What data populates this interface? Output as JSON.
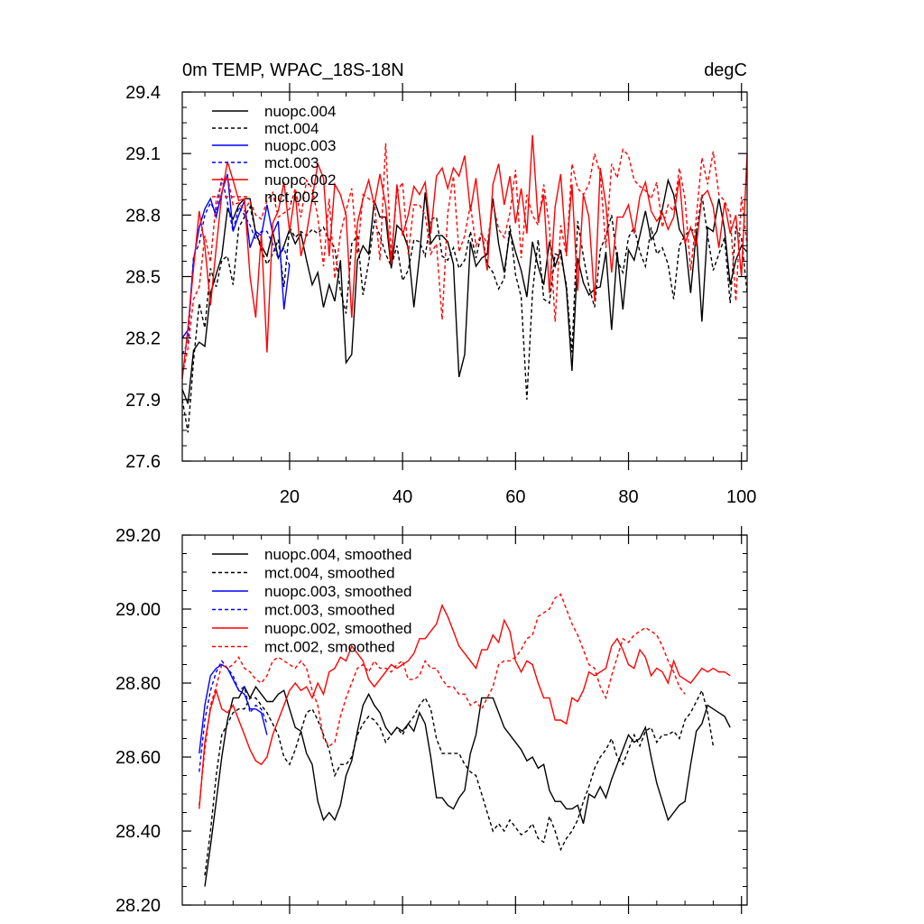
{
  "chart_data": [
    {
      "type": "line",
      "title": "0m TEMP, WPAC_18S-18N",
      "units": "degC",
      "xlim": [
        1,
        101
      ],
      "ylim": [
        27.6,
        29.4
      ],
      "xticks": [
        20,
        40,
        60,
        80,
        100
      ],
      "xtick_labels": [
        "20",
        "40",
        "60",
        "80",
        "100"
      ],
      "yticks": [
        27.6,
        27.9,
        28.2,
        28.5,
        28.8,
        29.1,
        29.4
      ],
      "ytick_labels": [
        "27.6",
        "27.9",
        "28.2",
        "28.5",
        "28.8",
        "29.1",
        "29.4"
      ],
      "legend_position": "top-left",
      "series": [
        {
          "name": "nuopc.004",
          "color": "#000000",
          "dash": "solid",
          "x_start": 1,
          "values": [
            27.95,
            27.88,
            28.14,
            28.18,
            28.16,
            28.42,
            28.51,
            28.6,
            28.83,
            28.78,
            28.85,
            28.88,
            28.88,
            28.71,
            28.65,
            28.6,
            28.72,
            28.59,
            28.65,
            28.73,
            28.66,
            28.71,
            28.58,
            28.46,
            28.52,
            28.35,
            28.46,
            28.38,
            28.58,
            28.08,
            28.12,
            28.58,
            28.65,
            28.61,
            28.87,
            28.79,
            28.79,
            28.54,
            28.75,
            28.72,
            28.64,
            28.35,
            28.6,
            28.91,
            28.66,
            28.7,
            28.7,
            28.67,
            28.56,
            28.01,
            28.12,
            28.67,
            28.55,
            28.59,
            28.61,
            28.88,
            28.66,
            28.52,
            28.72,
            28.62,
            28.53,
            28.4,
            28.67,
            28.55,
            28.46,
            28.67,
            28.55,
            28.63,
            28.44,
            28.04,
            28.59,
            28.47,
            28.41,
            28.44,
            28.45,
            28.62,
            28.24,
            28.62,
            28.34,
            28.63,
            28.58,
            28.7,
            28.82,
            28.68,
            28.72,
            28.83,
            28.97,
            28.9,
            28.73,
            28.68,
            28.42,
            28.72,
            28.28,
            28.74,
            28.72,
            28.88,
            28.73,
            28.46,
            28.58,
            28.65,
            28.62
          ]
        },
        {
          "name": "mct.004",
          "color": "#000000",
          "dash": "dashed",
          "x_start": 1,
          "values": [
            27.9,
            27.74,
            28.09,
            28.37,
            28.25,
            28.54,
            28.45,
            28.58,
            28.6,
            28.46,
            28.74,
            28.79,
            28.84,
            28.72,
            28.63,
            28.56,
            28.61,
            28.68,
            28.45,
            28.74,
            28.69,
            28.72,
            28.7,
            28.73,
            28.71,
            28.74,
            28.68,
            28.64,
            28.43,
            28.32,
            28.66,
            28.7,
            28.41,
            28.57,
            28.77,
            28.7,
            28.61,
            28.55,
            28.65,
            28.48,
            28.53,
            28.68,
            28.67,
            28.6,
            28.78,
            28.79,
            28.6,
            28.58,
            28.64,
            28.54,
            28.58,
            28.72,
            28.59,
            28.72,
            28.56,
            28.52,
            28.44,
            28.49,
            28.75,
            28.51,
            28.4,
            27.9,
            28.42,
            28.68,
            28.39,
            28.37,
            28.61,
            28.6,
            28.46,
            28.13,
            28.77,
            28.6,
            28.45,
            28.35,
            28.63,
            28.7,
            28.8,
            28.58,
            28.52,
            28.69,
            28.74,
            28.62,
            28.55,
            28.74,
            28.61,
            28.64,
            28.56,
            28.39,
            28.65,
            28.7,
            28.73,
            28.72,
            28.9,
            28.7,
            28.53,
            28.61,
            28.69,
            28.37,
            28.74,
            28.69,
            28.42
          ]
        },
        {
          "name": "nuopc.003",
          "color": "#0000ff",
          "dash": "solid",
          "x_start": 1,
          "values": [
            28.2,
            28.24,
            28.58,
            28.74,
            28.83,
            28.88,
            28.79,
            28.91,
            29.0,
            28.72,
            28.8,
            28.87,
            28.64,
            28.72,
            28.7,
            28.85,
            28.71,
            28.77,
            28.34,
            28.56
          ]
        },
        {
          "name": "mct.003",
          "color": "#0000ff",
          "dash": "dashed",
          "x_start": 1,
          "values": [
            28.12,
            28.18,
            28.6,
            28.66,
            28.8,
            28.86,
            28.81,
            28.98,
            28.86,
            28.72,
            28.84,
            28.8,
            28.75,
            28.68,
            28.72,
            28.72,
            28.66,
            28.59,
            28.64,
            28.55
          ]
        },
        {
          "name": "nuopc.002",
          "color": "#ff0000",
          "dash": "solid",
          "x_start": 1,
          "values": [
            28.0,
            28.25,
            28.54,
            28.82,
            28.65,
            28.36,
            28.64,
            28.9,
            29.06,
            28.97,
            28.87,
            28.88,
            28.5,
            28.3,
            28.71,
            28.13,
            28.76,
            28.82,
            28.96,
            28.72,
            28.91,
            28.6,
            28.71,
            28.88,
            29.05,
            28.98,
            28.6,
            28.95,
            28.9,
            28.8,
            28.3,
            28.76,
            28.88,
            28.97,
            28.85,
            29.0,
            28.85,
            28.56,
            28.95,
            28.7,
            28.8,
            28.94,
            28.9,
            28.96,
            28.71,
            28.99,
            29.03,
            28.93,
            29.03,
            28.99,
            29.09,
            28.82,
            28.98,
            28.71,
            28.53,
            28.95,
            29.05,
            28.85,
            28.99,
            28.76,
            28.93,
            28.71,
            29.19,
            28.77,
            28.9,
            28.42,
            28.84,
            29.0,
            28.61,
            28.95,
            28.43,
            28.9,
            28.79,
            28.38,
            29.03,
            28.85,
            28.52,
            28.79,
            28.79,
            28.85,
            28.71,
            28.89,
            28.96,
            28.82,
            28.77,
            28.81,
            28.73,
            28.79,
            28.98,
            28.66,
            28.74,
            28.65,
            28.89,
            28.92,
            28.84,
            28.64,
            28.86,
            28.71,
            28.8,
            28.5,
            29.1
          ]
        },
        {
          "name": "mct.002",
          "color": "#ff0000",
          "dash": "dashed",
          "x_start": 1,
          "values": [
            28.02,
            28.15,
            28.39,
            28.45,
            28.7,
            28.57,
            28.87,
            28.96,
            28.99,
            28.85,
            28.86,
            28.82,
            28.87,
            28.8,
            28.78,
            28.87,
            28.91,
            28.79,
            28.81,
            28.83,
            28.93,
            28.79,
            28.97,
            28.93,
            28.79,
            28.55,
            28.88,
            28.49,
            28.71,
            28.82,
            28.93,
            28.61,
            28.9,
            28.88,
            28.86,
            28.58,
            29.15,
            28.6,
            28.91,
            28.96,
            28.61,
            28.85,
            28.85,
            28.8,
            28.61,
            28.66,
            28.29,
            28.81,
            28.99,
            28.62,
            28.7,
            28.85,
            28.65,
            28.71,
            28.66,
            28.86,
            28.73,
            28.69,
            28.81,
            29.02,
            28.59,
            28.9,
            28.8,
            28.75,
            28.95,
            28.74,
            28.28,
            28.75,
            28.6,
            29.05,
            28.93,
            28.9,
            28.95,
            29.1,
            29.0,
            28.64,
            29.05,
            28.98,
            29.12,
            29.09,
            28.97,
            28.94,
            28.92,
            28.88,
            28.96,
            28.74,
            28.85,
            28.82,
            29.03,
            28.88,
            28.53,
            28.79,
            29.08,
            28.95,
            29.11,
            28.9,
            28.87,
            28.8,
            28.38,
            28.89,
            28.65
          ]
        }
      ]
    },
    {
      "type": "line",
      "title": "",
      "xlim": [
        1,
        101
      ],
      "ylim": [
        28.2,
        29.2
      ],
      "xticks": [
        20,
        40,
        60,
        80,
        100
      ],
      "xtick_labels": [
        "",
        "",
        "",
        "",
        ""
      ],
      "yticks": [
        28.2,
        28.4,
        28.6,
        28.8,
        29.0,
        29.2
      ],
      "ytick_labels": [
        "28.20",
        "28.40",
        "28.60",
        "28.80",
        "29.00",
        "29.20"
      ],
      "legend_position": "top-left",
      "series": [
        {
          "name": "nuopc.004, smoothed",
          "color": "#000000",
          "dash": "solid",
          "x_start": 5,
          "values": [
            28.25,
            28.36,
            28.48,
            28.6,
            28.7,
            28.76,
            28.76,
            28.79,
            28.76,
            28.79,
            28.77,
            28.75,
            28.75,
            28.77,
            28.78,
            28.73,
            28.68,
            28.67,
            28.61,
            28.58,
            28.48,
            28.43,
            28.45,
            28.43,
            28.47,
            28.55,
            28.59,
            28.67,
            28.74,
            28.77,
            28.74,
            28.72,
            28.68,
            28.66,
            28.68,
            28.67,
            28.69,
            28.67,
            28.72,
            28.69,
            28.6,
            28.49,
            28.49,
            28.47,
            28.46,
            28.49,
            28.51,
            28.61,
            28.66,
            28.76,
            28.76,
            28.76,
            28.72,
            28.68,
            28.66,
            28.64,
            28.62,
            28.59,
            28.6,
            28.57,
            28.58,
            28.51,
            28.48,
            28.48,
            28.46,
            28.46,
            28.47,
            28.42,
            28.5,
            28.49,
            28.52,
            28.49,
            28.54,
            28.58,
            28.62,
            28.66,
            28.64,
            28.65,
            28.68,
            28.6,
            28.53,
            28.48,
            28.43,
            28.45,
            28.47,
            28.48,
            28.58,
            28.67,
            28.69,
            28.74,
            28.73,
            28.72,
            28.71,
            28.68
          ]
        },
        {
          "name": "mct.004, smoothed",
          "color": "#000000",
          "dash": "dashed",
          "x_start": 5,
          "values": [
            28.28,
            28.4,
            28.55,
            28.66,
            28.69,
            28.72,
            28.73,
            28.73,
            28.76,
            28.76,
            28.74,
            28.72,
            28.69,
            28.66,
            28.6,
            28.58,
            28.62,
            28.67,
            28.72,
            28.73,
            28.7,
            28.66,
            28.62,
            28.55,
            28.58,
            28.58,
            28.6,
            28.66,
            28.69,
            28.71,
            28.7,
            28.68,
            28.64,
            28.66,
            28.68,
            28.66,
            28.69,
            28.71,
            28.74,
            28.76,
            28.73,
            28.65,
            28.61,
            28.61,
            28.61,
            28.61,
            28.58,
            28.56,
            28.55,
            28.5,
            28.45,
            28.4,
            28.42,
            28.4,
            28.43,
            28.41,
            28.39,
            28.4,
            28.42,
            28.38,
            28.37,
            28.44,
            28.4,
            28.35,
            28.38,
            28.4,
            28.43,
            28.48,
            28.52,
            28.57,
            28.6,
            28.62,
            28.65,
            28.6,
            28.58,
            28.62,
            28.66,
            28.63,
            28.67,
            28.68,
            28.64,
            28.66,
            28.66,
            28.67,
            28.65,
            28.7,
            28.72,
            28.75,
            28.78,
            28.72,
            28.63
          ]
        },
        {
          "name": "nuopc.003, smoothed",
          "color": "#0000ff",
          "dash": "solid",
          "x_start": 4,
          "values": [
            28.61,
            28.74,
            28.82,
            28.84,
            28.85,
            28.84,
            28.81,
            28.78,
            28.77,
            28.73,
            28.73,
            28.72,
            28.66
          ]
        },
        {
          "name": "mct.003, smoothed",
          "color": "#0000ff",
          "dash": "dashed",
          "x_start": 4,
          "values": [
            28.56,
            28.7,
            28.78,
            28.83,
            28.86,
            28.84,
            28.82,
            28.78,
            28.79,
            28.72,
            28.74,
            28.73,
            28.69
          ]
        },
        {
          "name": "nuopc.002, smoothed",
          "color": "#ff0000",
          "dash": "solid",
          "x_start": 4,
          "values": [
            28.46,
            28.64,
            28.73,
            28.78,
            28.73,
            28.72,
            28.74,
            28.7,
            28.66,
            28.62,
            28.59,
            28.58,
            28.6,
            28.66,
            28.7,
            28.74,
            28.78,
            28.8,
            28.78,
            28.79,
            28.76,
            28.8,
            28.77,
            28.83,
            28.84,
            28.87,
            28.86,
            28.9,
            28.88,
            28.86,
            28.81,
            28.79,
            28.81,
            28.83,
            28.85,
            28.84,
            28.85,
            28.86,
            28.88,
            28.92,
            28.92,
            28.94,
            28.96,
            29.01,
            28.98,
            28.94,
            28.9,
            28.88,
            28.86,
            28.84,
            28.89,
            28.89,
            28.93,
            28.91,
            28.97,
            28.94,
            28.86,
            28.83,
            28.86,
            28.85,
            28.8,
            28.76,
            28.76,
            28.7,
            28.7,
            28.69,
            28.76,
            28.75,
            28.78,
            28.83,
            28.82,
            28.83,
            28.84,
            28.9,
            28.92,
            28.89,
            28.85,
            28.84,
            28.89,
            28.87,
            28.82,
            28.84,
            28.83,
            28.8,
            28.86,
            28.82,
            28.81,
            28.8,
            28.82,
            28.84,
            28.83,
            28.84,
            28.83,
            28.83,
            28.82
          ]
        },
        {
          "name": "mct.002, smoothed",
          "color": "#ff0000",
          "dash": "dashed",
          "x_start": 4,
          "values": [
            28.47,
            28.62,
            28.74,
            28.79,
            28.85,
            28.84,
            28.85,
            28.87,
            28.84,
            28.83,
            28.81,
            28.8,
            28.82,
            28.86,
            28.87,
            28.86,
            28.85,
            28.84,
            28.86,
            28.84,
            28.78,
            28.74,
            28.65,
            28.63,
            28.64,
            28.71,
            28.76,
            28.8,
            28.84,
            28.85,
            28.83,
            28.86,
            28.84,
            28.84,
            28.83,
            28.85,
            28.86,
            28.81,
            28.81,
            28.82,
            28.86,
            28.84,
            28.84,
            28.81,
            28.79,
            28.79,
            28.77,
            28.77,
            28.74,
            28.75,
            28.73,
            28.76,
            28.79,
            28.85,
            28.86,
            28.86,
            28.87,
            28.89,
            28.92,
            28.93,
            28.98,
            28.99,
            29.0,
            29.03,
            29.04,
            29.0,
            28.96,
            28.93,
            28.89,
            28.85,
            28.84,
            28.79,
            28.76,
            28.82,
            28.87,
            28.92,
            28.91,
            28.93,
            28.94,
            28.95,
            28.94,
            28.93,
            28.9,
            28.86,
            28.83,
            28.79,
            28.77
          ]
        }
      ]
    }
  ]
}
